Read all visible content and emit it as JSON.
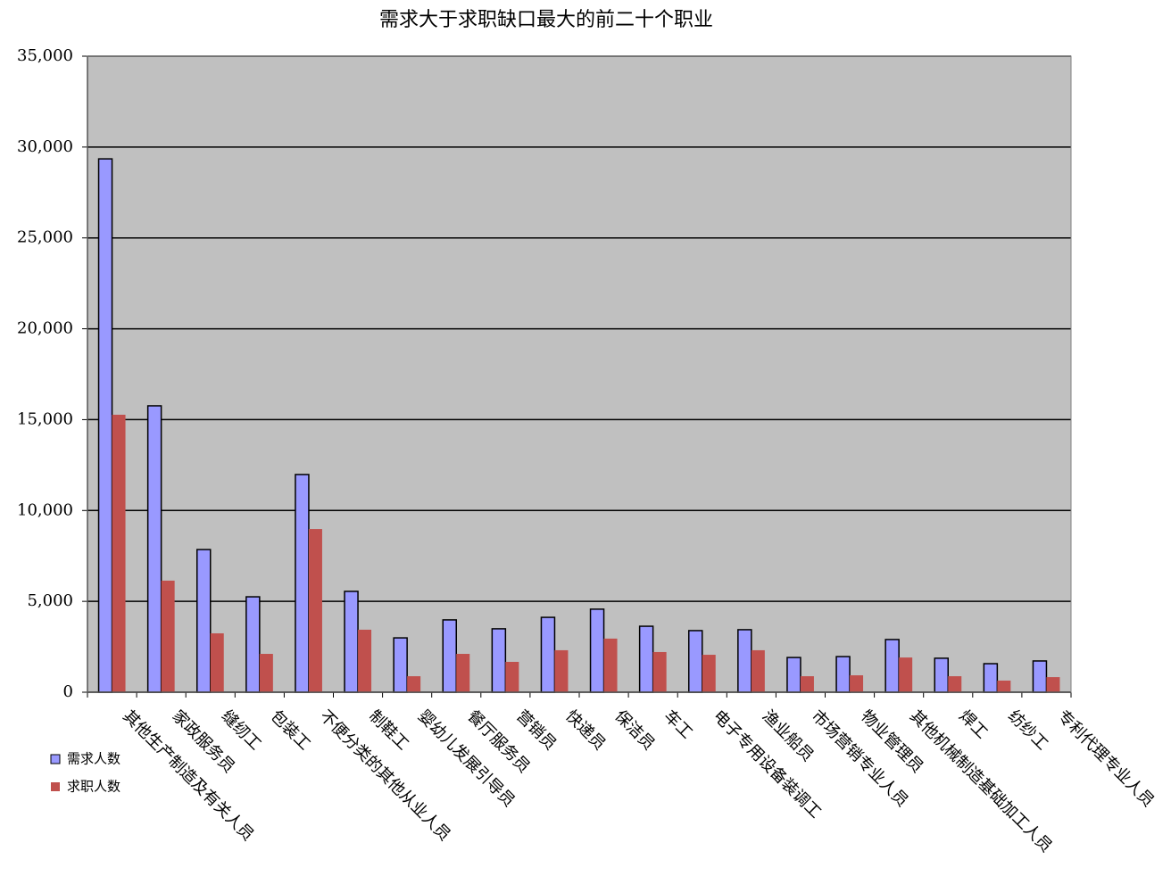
{
  "chart_data": {
    "type": "bar",
    "title": "需求大于求职缺口最大的前二十个职业",
    "categories": [
      "其他生产制造及有关人员",
      "家政服务员",
      "缝纫工",
      "包装工",
      "不便分类的其他从业人员",
      "制鞋工",
      "婴幼儿发展引导员",
      "餐厅服务员",
      "营销员",
      "快递员",
      "保洁员",
      "车工",
      "电子专用设备装调工",
      "渔业船员",
      "市场营销专业人员",
      "物业管理员",
      "其他机械制造基础加工人员",
      "焊工",
      "纺纱工",
      "专利代理专业人员"
    ],
    "series": [
      {
        "name": "需求人数",
        "color": "#9999ff",
        "values": [
          29350,
          15760,
          7850,
          5250,
          11980,
          5550,
          2990,
          3980,
          3490,
          4120,
          4570,
          3630,
          3390,
          3440,
          1910,
          1960,
          2900,
          1870,
          1570,
          1720
        ]
      },
      {
        "name": "求职人数",
        "color": "#c0504d",
        "values": [
          15270,
          6140,
          3240,
          2110,
          8980,
          3440,
          880,
          2110,
          1670,
          2310,
          2950,
          2210,
          2060,
          2310,
          880,
          930,
          1910,
          880,
          640,
          830
        ]
      }
    ],
    "ylim": [
      0,
      35000
    ],
    "yticks": [
      0,
      {
        "value": 5000,
        "label": "5,000"
      },
      {
        "value": 10000,
        "label": "10,000"
      },
      {
        "value": 15000,
        "label": "15,000"
      },
      {
        "value": 20000,
        "label": "20,000"
      },
      {
        "value": 25000,
        "label": "25,000"
      },
      {
        "value": 30000,
        "label": "30,000"
      },
      {
        "value": 35000,
        "label": "35,000"
      }
    ],
    "grid": true,
    "legend": "left"
  }
}
